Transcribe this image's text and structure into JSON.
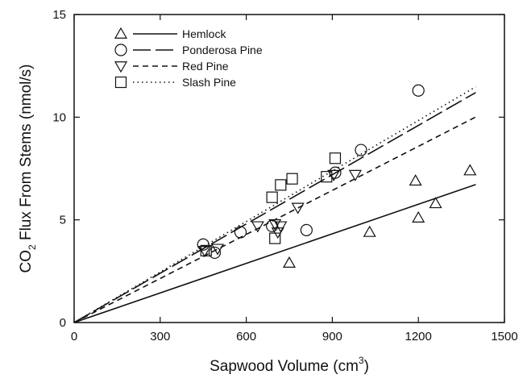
{
  "chart_data": {
    "type": "scatter",
    "xlabel_main": "Sapwood Volume (cm",
    "xlabel_sup": "3",
    "xlabel_end": ")",
    "ylabel_pre": "CO",
    "ylabel_sub": "2",
    "ylabel_post": " Flux  From Stems  (nmol/s)",
    "xlim": [
      0,
      1500
    ],
    "ylim": [
      0,
      15
    ],
    "x_ticks": [
      0,
      300,
      600,
      900,
      1200,
      1500
    ],
    "y_ticks": [
      0,
      5,
      10,
      15
    ],
    "grid": false,
    "legend_position": "top-left",
    "series": [
      {
        "name": "Hemlock",
        "marker": "triangle-up",
        "line": "solid",
        "fit_slope": 0.0048,
        "fit_x_max": 1400,
        "points": [
          [
            750,
            2.9
          ],
          [
            1030,
            4.4
          ],
          [
            1190,
            6.9
          ],
          [
            1200,
            5.1
          ],
          [
            1260,
            5.8
          ],
          [
            1380,
            7.4
          ]
        ]
      },
      {
        "name": "Ponderosa Pine",
        "marker": "circle",
        "line": "long-dash",
        "fit_slope": 0.008,
        "fit_x_max": 1400,
        "points": [
          [
            450,
            3.8
          ],
          [
            490,
            3.4
          ],
          [
            580,
            4.4
          ],
          [
            690,
            4.7
          ],
          [
            810,
            4.5
          ],
          [
            910,
            7.3
          ],
          [
            1000,
            8.4
          ],
          [
            1200,
            11.3
          ]
        ]
      },
      {
        "name": "Red Pine",
        "marker": "triangle-down",
        "line": "short-dash",
        "fit_slope": 0.00715,
        "fit_x_max": 1400,
        "points": [
          [
            455,
            3.5
          ],
          [
            500,
            3.6
          ],
          [
            640,
            4.7
          ],
          [
            700,
            4.8
          ],
          [
            710,
            4.4
          ],
          [
            720,
            4.7
          ],
          [
            780,
            5.6
          ],
          [
            905,
            7.2
          ],
          [
            980,
            7.2
          ]
        ]
      },
      {
        "name": "Slash Pine",
        "marker": "square",
        "line": "dotted",
        "fit_slope": 0.0082,
        "fit_x_max": 1400,
        "points": [
          [
            460,
            3.5
          ],
          [
            690,
            6.1
          ],
          [
            700,
            4.1
          ],
          [
            720,
            6.7
          ],
          [
            760,
            7.0
          ],
          [
            880,
            7.1
          ],
          [
            910,
            8.0
          ]
        ]
      }
    ]
  }
}
